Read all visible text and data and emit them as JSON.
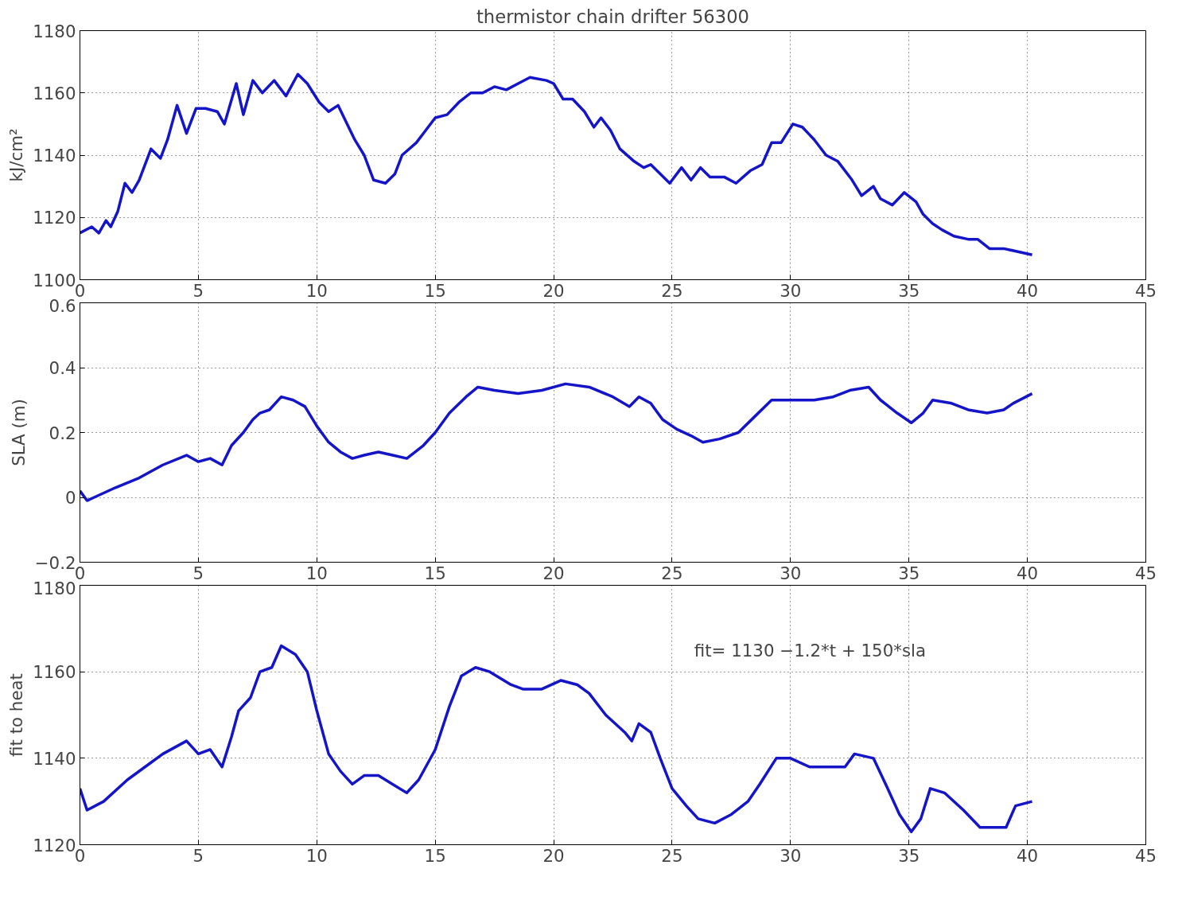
{
  "chart_data": [
    {
      "type": "line",
      "title": "thermistor chain drifter 56300",
      "ylabel": "kJ/cm²",
      "series": [
        {
          "color": "#1414c8",
          "x": [
            0,
            0.5,
            0.8,
            1.1,
            1.3,
            1.6,
            1.9,
            2.2,
            2.5,
            3.0,
            3.4,
            3.7,
            4.1,
            4.5,
            4.9,
            5.3,
            5.8,
            6.1,
            6.6,
            6.9,
            7.3,
            7.7,
            8.2,
            8.7,
            9.2,
            9.6,
            10.1,
            10.5,
            10.9,
            11.6,
            12.0,
            12.4,
            12.9,
            13.3,
            13.6,
            14.2,
            14.6,
            15.0,
            15.5,
            16.0,
            16.5,
            17.0,
            17.5,
            18.0,
            18.5,
            19.0,
            19.7,
            20.0,
            20.4,
            20.8,
            21.3,
            21.7,
            22.0,
            22.4,
            22.8,
            23.4,
            23.8,
            24.1,
            24.5,
            24.9,
            25.4,
            25.8,
            26.2,
            26.6,
            27.2,
            27.7,
            28.3,
            28.8,
            29.2,
            29.6,
            30.1,
            30.5,
            31.0,
            31.5,
            32.0,
            32.6,
            33.0,
            33.5,
            33.8,
            34.3,
            34.8,
            35.3,
            35.6,
            36.0,
            36.4,
            36.9,
            37.5,
            37.9,
            38.4,
            39.0,
            39.6,
            40.2
          ],
          "values": [
            1115,
            1117,
            1115,
            1119,
            1117,
            1122,
            1131,
            1128,
            1132,
            1142,
            1139,
            1145,
            1156,
            1147,
            1155,
            1155,
            1154,
            1150,
            1163,
            1153,
            1164,
            1160,
            1164,
            1159,
            1166,
            1163,
            1157,
            1154,
            1156,
            1145,
            1140,
            1132,
            1131,
            1134,
            1140,
            1144,
            1148,
            1152,
            1153,
            1157,
            1160,
            1160,
            1162,
            1161,
            1163,
            1165,
            1164,
            1163,
            1158,
            1158,
            1154,
            1149,
            1152,
            1148,
            1142,
            1138,
            1136,
            1137,
            1134,
            1131,
            1136,
            1132,
            1136,
            1133,
            1133,
            1131,
            1135,
            1137,
            1144,
            1144,
            1150,
            1149,
            1145,
            1140,
            1138,
            1132,
            1127,
            1130,
            1126,
            1124,
            1128,
            1125,
            1121,
            1118,
            1116,
            1114,
            1113,
            1113,
            1110,
            1110,
            1109,
            1108
          ]
        }
      ],
      "xlim": [
        0,
        45
      ],
      "xticks": [
        0,
        5,
        10,
        15,
        20,
        25,
        30,
        35,
        40,
        45
      ],
      "ylim": [
        1100,
        1180
      ],
      "yticks": [
        1100,
        1120,
        1140,
        1160,
        1180
      ],
      "grid": true,
      "line_style": "solid"
    },
    {
      "type": "line",
      "ylabel": "SLA (m)",
      "series": [
        {
          "color": "#1414c8",
          "x": [
            0,
            0.3,
            0.6,
            1.5,
            2.5,
            3.5,
            4.5,
            5.0,
            5.5,
            6.0,
            6.4,
            6.9,
            7.3,
            7.6,
            8.0,
            8.5,
            9.0,
            9.5,
            10.0,
            10.5,
            11.0,
            11.5,
            12.0,
            12.6,
            13.2,
            13.8,
            14.5,
            15.0,
            15.6,
            16.3,
            16.8,
            17.5,
            18.5,
            19.5,
            20.5,
            21.5,
            22.5,
            23.2,
            23.6,
            24.1,
            24.6,
            25.2,
            25.8,
            26.3,
            27.0,
            27.8,
            28.5,
            29.2,
            30.0,
            31.0,
            31.8,
            32.5,
            33.3,
            33.8,
            34.5,
            35.1,
            35.6,
            36.0,
            36.8,
            37.5,
            38.3,
            39.0,
            39.4,
            40.2
          ],
          "values": [
            0.02,
            -0.01,
            0.0,
            0.03,
            0.06,
            0.1,
            0.13,
            0.11,
            0.12,
            0.1,
            0.16,
            0.2,
            0.24,
            0.26,
            0.27,
            0.31,
            0.3,
            0.28,
            0.22,
            0.17,
            0.14,
            0.12,
            0.13,
            0.14,
            0.13,
            0.12,
            0.16,
            0.2,
            0.26,
            0.31,
            0.34,
            0.33,
            0.32,
            0.33,
            0.35,
            0.34,
            0.31,
            0.28,
            0.31,
            0.29,
            0.24,
            0.21,
            0.19,
            0.17,
            0.18,
            0.2,
            0.25,
            0.3,
            0.3,
            0.3,
            0.31,
            0.33,
            0.34,
            0.3,
            0.26,
            0.23,
            0.26,
            0.3,
            0.29,
            0.27,
            0.26,
            0.27,
            0.29,
            0.32
          ]
        }
      ],
      "xlim": [
        0,
        45
      ],
      "xticks": [
        0,
        5,
        10,
        15,
        20,
        25,
        30,
        35,
        40,
        45
      ],
      "ylim": [
        -0.2,
        0.6
      ],
      "yticks": [
        {
          "value": -0.2,
          "label": "−0.2"
        },
        0,
        0.2,
        0.4,
        0.6
      ],
      "grid": true,
      "line_style": "solid"
    },
    {
      "type": "line",
      "ylabel": "fit to heat",
      "annotations": [
        "fit= 1130 −1.2*t + 150*sla"
      ],
      "series": [
        {
          "color": "#1414c8",
          "x": [
            0,
            0.3,
            1,
            2,
            3,
            3.5,
            4.5,
            5.0,
            5.5,
            6.0,
            6.4,
            6.7,
            7.2,
            7.6,
            8.1,
            8.5,
            9.1,
            9.6,
            10.0,
            10.5,
            11.0,
            11.5,
            12.0,
            12.6,
            13.2,
            13.8,
            14.3,
            15.0,
            15.6,
            16.1,
            16.7,
            17.3,
            18.2,
            18.7,
            19.5,
            20.3,
            21.0,
            21.5,
            22.2,
            23.0,
            23.3,
            23.6,
            24.1,
            24.5,
            25.0,
            25.6,
            26.1,
            26.8,
            27.5,
            28.2,
            28.7,
            29.4,
            30.0,
            30.8,
            31.7,
            32.3,
            32.7,
            33.5,
            34.1,
            34.6,
            35.1,
            35.5,
            35.9,
            36.5,
            37.3,
            38.0,
            38.6,
            39.1,
            39.5,
            40.2
          ],
          "values": [
            1133,
            1128,
            1130,
            1135,
            1139,
            1141,
            1144,
            1141,
            1142,
            1138,
            1145,
            1151,
            1154,
            1160,
            1161,
            1166,
            1164,
            1160,
            1151,
            1141,
            1137,
            1134,
            1136,
            1136,
            1134,
            1132,
            1135,
            1142,
            1152,
            1159,
            1161,
            1160,
            1157,
            1156,
            1156,
            1158,
            1157,
            1155,
            1150,
            1146,
            1144,
            1148,
            1146,
            1140,
            1133,
            1129,
            1126,
            1125,
            1127,
            1130,
            1134,
            1140,
            1140,
            1138,
            1138,
            1138,
            1141,
            1140,
            1133,
            1127,
            1123,
            1126,
            1133,
            1132,
            1128,
            1124,
            1124,
            1124,
            1129,
            1130
          ]
        }
      ],
      "xlim": [
        0,
        45
      ],
      "xticks": [
        0,
        5,
        10,
        15,
        20,
        25,
        30,
        35,
        40,
        45
      ],
      "ylim": [
        1120,
        1180
      ],
      "yticks": [
        1120,
        1140,
        1160,
        1180
      ],
      "grid": true,
      "line_style": "solid"
    }
  ]
}
